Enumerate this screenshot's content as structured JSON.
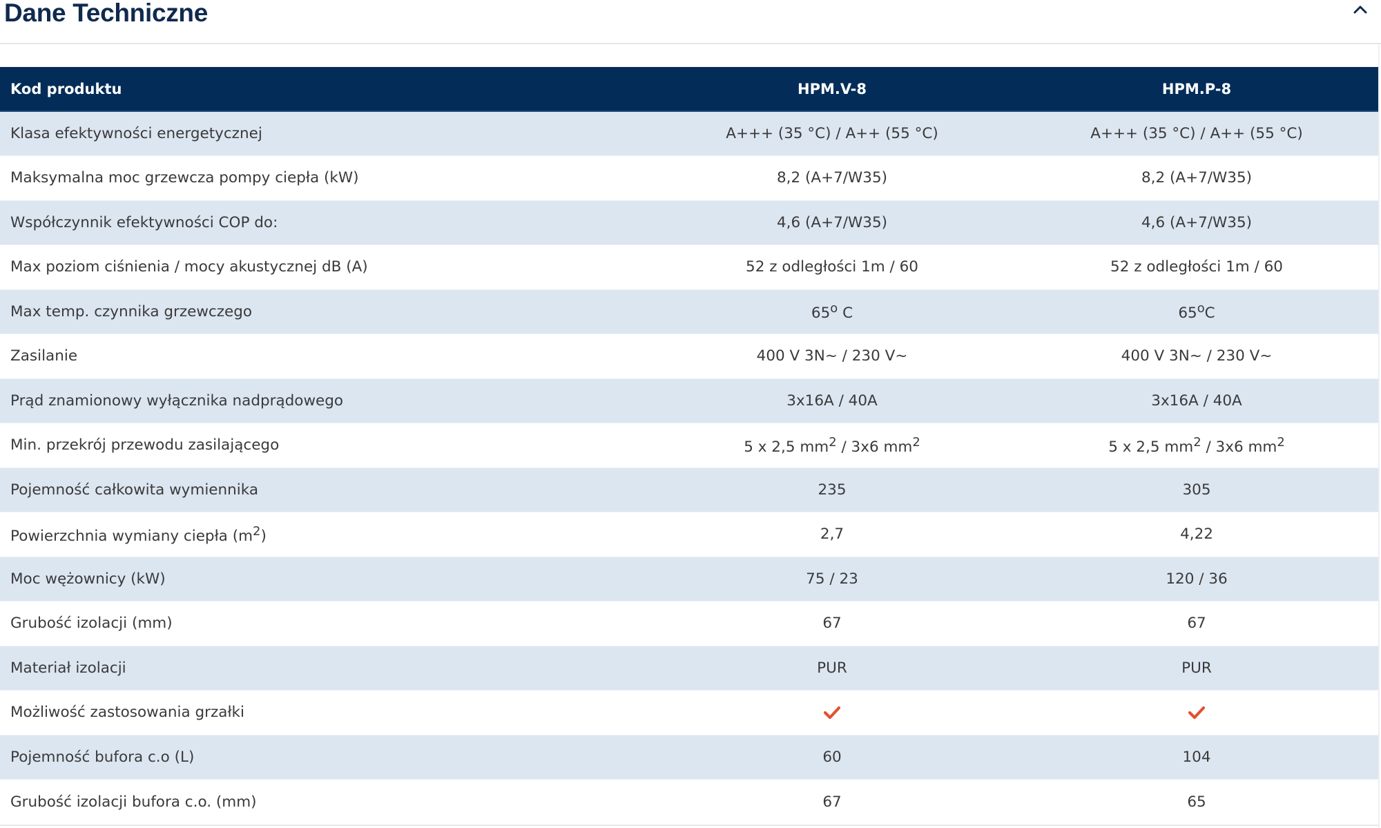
{
  "section": {
    "title": "Dane Techniczne",
    "toggle_icon": "chevron-up-icon"
  },
  "table": {
    "headers": [
      "Kod produktu",
      "HPM.V-8",
      "HPM.P-8"
    ],
    "rows": [
      {
        "label": "Klasa efektywności energetycznej",
        "v1": "A+++ (35 °C) / A++ (55 °C)",
        "v2": "A+++ (35 °C) / A++ (55 °C)"
      },
      {
        "label": "Maksymalna moc grzewcza pompy ciepła (kW)",
        "v1": "8,2 (A+7/W35)",
        "v2": "8,2 (A+7/W35)"
      },
      {
        "label": "Współczynnik efektywności COP do:",
        "v1": "4,6 (A+7/W35)",
        "v2": "4,6 (A+7/W35)"
      },
      {
        "label": "Max poziom ciśnienia / mocy akustycznej dB (A)",
        "v1": "52 z odległości 1m / 60",
        "v2": "52 z odległości 1m / 60"
      },
      {
        "label": "Max temp. czynnika grzewczego",
        "v1": "65<sup>o</sup> C",
        "v2": "65<sup>o</sup>C"
      },
      {
        "label": "Zasilanie",
        "v1": "400 V 3N~ / 230 V~",
        "v2": "400 V 3N~ / 230 V~"
      },
      {
        "label": "Prąd znamionowy wyłącznika nadprądowego",
        "v1": "3x16A / 40A",
        "v2": "3x16A / 40A"
      },
      {
        "label": "Min. przekrój przewodu zasilającego",
        "v1": "5 x 2,5 mm<sup>2</sup> / 3x6 mm<sup>2</sup>",
        "v2": "5 x 2,5 mm<sup>2</sup> / 3x6 mm<sup>2</sup>"
      },
      {
        "label": "Pojemność całkowita wymiennika",
        "v1": "235",
        "v2": "305"
      },
      {
        "label": "Powierzchnia wymiany ciepła (m<sup>2</sup>)",
        "v1": "2,7",
        "v2": "4,22"
      },
      {
        "label": "Moc wężownicy (kW)",
        "v1": "75 / 23",
        "v2": "120 / 36"
      },
      {
        "label": "Grubość izolacji (mm)",
        "v1": "67",
        "v2": "67"
      },
      {
        "label": "Materiał izolacji",
        "v1": "PUR",
        "v2": "PUR"
      },
      {
        "label": "Możliwość zastosowania grzałki",
        "v1": true,
        "v2": true
      },
      {
        "label": "Pojemność bufora c.o (L)",
        "v1": "60",
        "v2": "104"
      },
      {
        "label": "Grubość izolacji bufora c.o. (mm)",
        "v1": "67",
        "v2": "65"
      }
    ]
  },
  "colors": {
    "title": "#102a4e",
    "header_bg": "#032d58",
    "row_alt_bg": "#dce6f1",
    "check": "#e2522f"
  },
  "icons": {
    "check": "check-icon"
  }
}
